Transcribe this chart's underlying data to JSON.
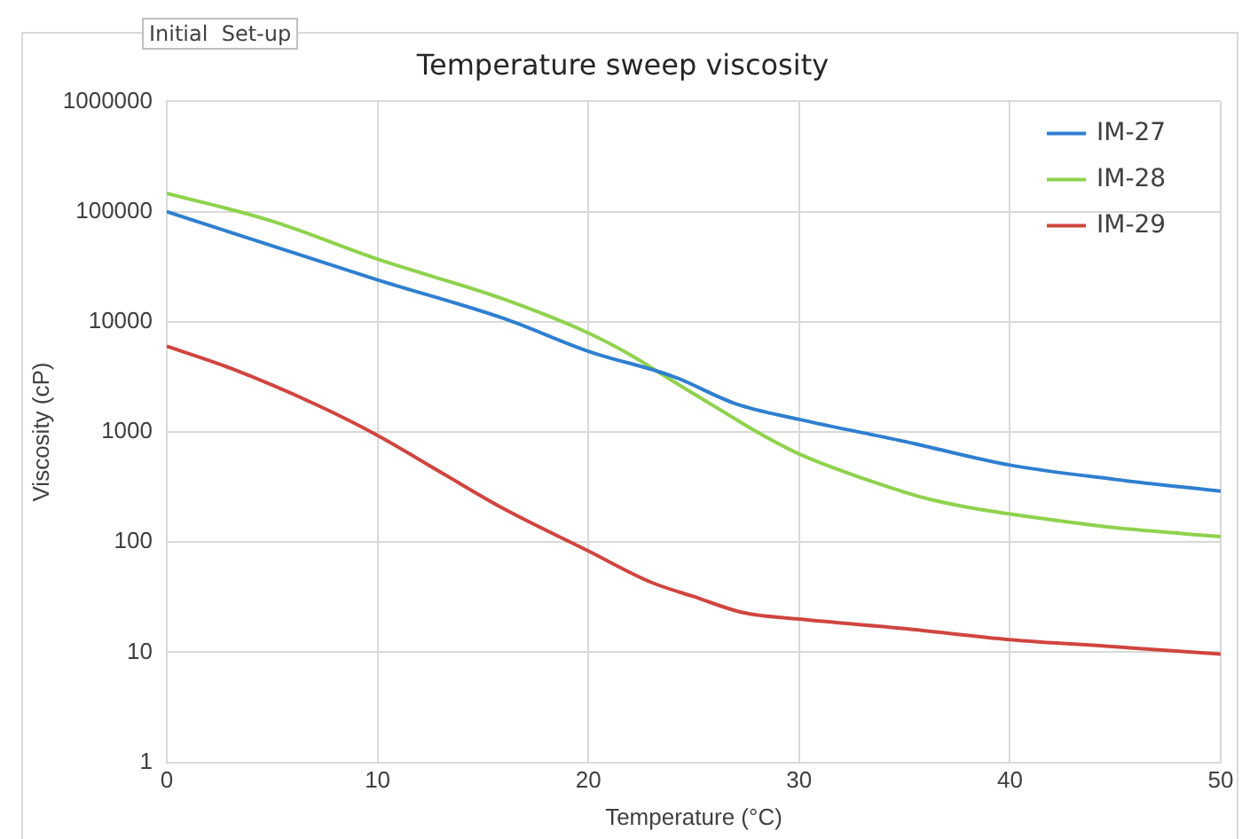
{
  "chart_data": {
    "type": "line",
    "title": "Temperature sweep viscosity",
    "xlabel": "Temperature (°C)",
    "ylabel": "Viscosity (cP)",
    "annotations": [
      "Initial  Set-up"
    ],
    "log": "y",
    "grid": true,
    "legend": "top right",
    "marker": "none",
    "line_style": "solid",
    "xlim": [
      0,
      50
    ],
    "xticks": [
      0,
      10,
      20,
      30,
      40,
      50
    ],
    "ylim": [
      1,
      1000000
    ],
    "yticks": [
      1,
      10,
      100,
      1000,
      10000,
      100000,
      1000000
    ],
    "series": [
      {
        "name": "IM-27",
        "color": "#2e7fd0",
        "x": [
          0,
          10,
          16,
          20,
          24,
          27,
          30,
          35,
          40,
          45,
          50
        ],
        "values": [
          100000,
          24000,
          10700,
          5400,
          3200,
          1800,
          1300,
          820,
          500,
          370,
          290
        ]
      },
      {
        "name": "IM-28",
        "color": "#8ed24c",
        "x": [
          0,
          5,
          10,
          16,
          20,
          22,
          24,
          26,
          28,
          30,
          33,
          36,
          38,
          40,
          45,
          50
        ],
        "values": [
          147000,
          82000,
          37000,
          16000,
          7900,
          5000,
          2900,
          1700,
          1000,
          630,
          380,
          250,
          207,
          180,
          135,
          112
        ]
      },
      {
        "name": "IM-29",
        "color": "#d0453f",
        "x": [
          0,
          3,
          7,
          10,
          13,
          16,
          20,
          23,
          25,
          27.3,
          30,
          35,
          40,
          45,
          50
        ],
        "values": [
          6000,
          3800,
          1800,
          930,
          430,
          200,
          83,
          43,
          32,
          23,
          20,
          16.4,
          13,
          11.2,
          9.6
        ]
      }
    ]
  }
}
